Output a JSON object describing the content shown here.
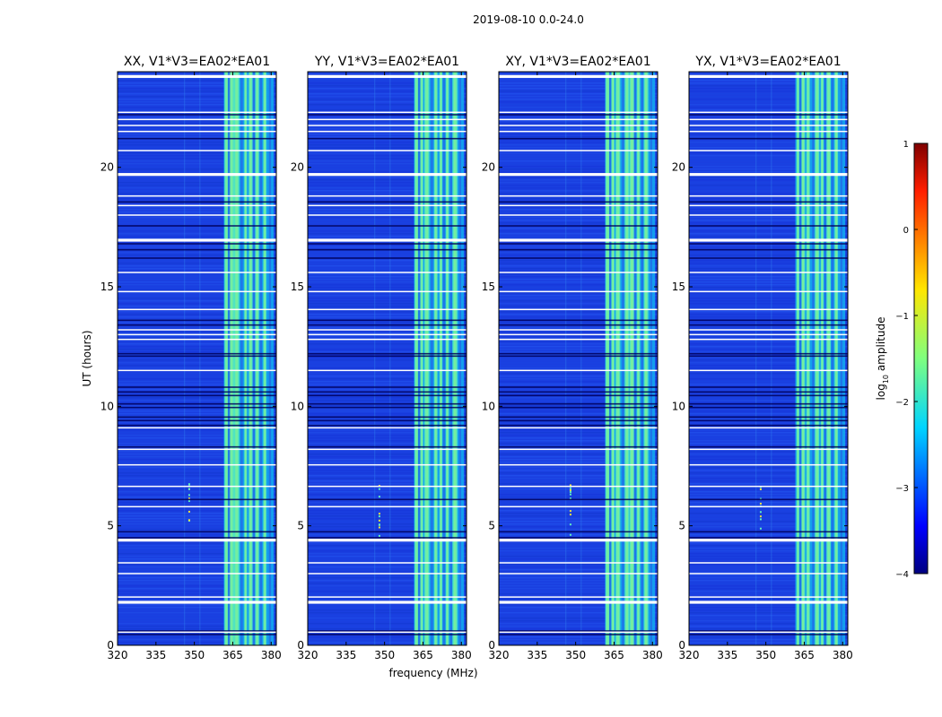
{
  "chart_data": {
    "type": "heatmap",
    "suptitle": "2019-08-10 0.0-24.0",
    "xlabel": "frequency (MHz)",
    "ylabel": "UT (hours)",
    "xlim": [
      320,
      382
    ],
    "ylim": [
      0,
      24
    ],
    "xticks": [
      "320",
      "335",
      "350",
      "365",
      "380"
    ],
    "yticks": [
      "0",
      "5",
      "10",
      "15",
      "20"
    ],
    "panels": [
      {
        "title": "XX, V1*V3=EA02*EA01"
      },
      {
        "title": "YY, V1*V3=EA02*EA01"
      },
      {
        "title": "XY, V1*V3=EA02*EA01"
      },
      {
        "title": "YX, V1*V3=EA02*EA01"
      }
    ],
    "colorbar": {
      "label": "log",
      "label_sub": "10",
      "label_rest": " amplitude",
      "range": [
        -4,
        1
      ],
      "ticks": [
        "1",
        "0",
        "−1",
        "−2",
        "−3",
        "−4"
      ],
      "colormap": "jet"
    },
    "bright_band_mhz": [
      361.5,
      381
    ],
    "bright_columns_mhz": [
      362.5,
      364.5,
      366.5,
      370,
      372,
      374.5,
      377.5
    ],
    "white_gap_hours": [
      0.55,
      1.8,
      2.02,
      3.0,
      3.45,
      4.4,
      5.8,
      6.65,
      7.55,
      8.2,
      9.1,
      11.5,
      12.8,
      13.0,
      13.2,
      14.05,
      14.8,
      15.6,
      16.95,
      18.0,
      18.4,
      18.8,
      19.7,
      20.7,
      21.5,
      21.75,
      22.0,
      22.3,
      23.8
    ],
    "dark_line_hours": [
      0.45,
      0.6,
      4.5,
      4.75,
      6.1,
      8.3,
      9.2,
      9.4,
      9.55,
      9.95,
      10.1,
      10.45,
      10.6,
      10.8,
      12.1,
      12.2,
      13.4,
      13.6,
      16.2,
      16.55,
      16.8,
      17.55,
      18.55,
      21.2,
      22.2
    ]
  }
}
